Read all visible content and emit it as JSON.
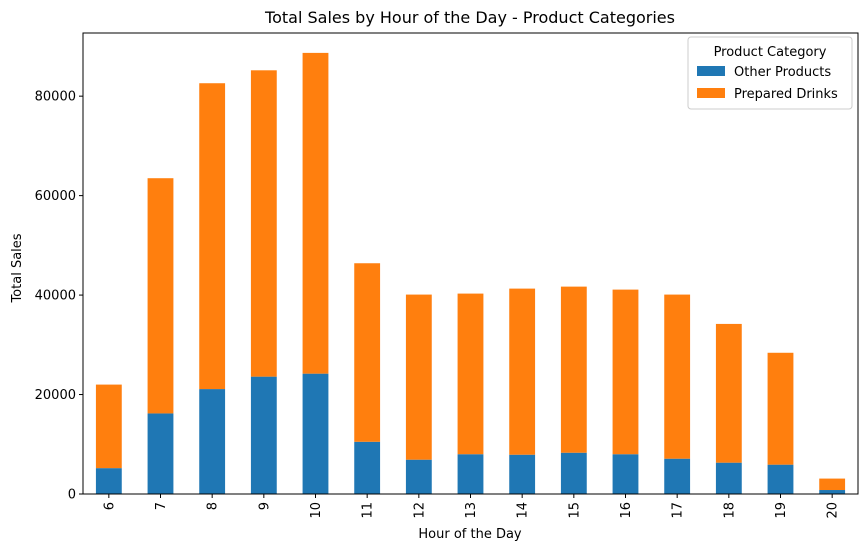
{
  "chart_data": {
    "type": "bar",
    "stacked": true,
    "title": "Total Sales by Hour of the Day - Product Categories",
    "xlabel": "Hour of the Day",
    "ylabel": "Total Sales",
    "categories": [
      "6",
      "7",
      "8",
      "9",
      "10",
      "11",
      "12",
      "13",
      "14",
      "15",
      "16",
      "17",
      "18",
      "19",
      "20"
    ],
    "series": [
      {
        "name": "Other Products",
        "color": "#1f77b4",
        "values": [
          5200,
          16200,
          21100,
          23600,
          24200,
          10500,
          6900,
          8000,
          7900,
          8300,
          8000,
          7100,
          6300,
          5900,
          800
        ]
      },
      {
        "name": "Prepared Drinks",
        "color": "#ff7f0e",
        "values": [
          16800,
          47300,
          61500,
          61600,
          64500,
          35900,
          33200,
          32300,
          33400,
          33400,
          33100,
          33000,
          27900,
          22500,
          2300
        ]
      }
    ],
    "ylim": [
      0,
      92700
    ],
    "yticks": [
      0,
      20000,
      40000,
      60000,
      80000
    ],
    "grid": false,
    "legend": {
      "title": "Product Category",
      "placement": "top-right"
    }
  }
}
